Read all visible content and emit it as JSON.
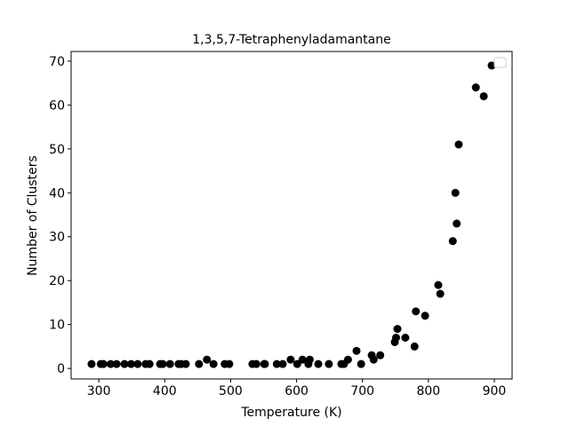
{
  "chart_data": {
    "type": "scatter",
    "title": "1,3,5,7-Tetraphenyladamantane",
    "xlabel": "Temperature (K)",
    "ylabel": "Number of Clusters",
    "color": "#000000",
    "legend": "upper right",
    "x": [
      289,
      303,
      307,
      318,
      327,
      339,
      349,
      359,
      371,
      377,
      393,
      397,
      408,
      421,
      425,
      432,
      452,
      474,
      491,
      498,
      533,
      539,
      551,
      552,
      570,
      579,
      601,
      618,
      633,
      649,
      668,
      672,
      698,
      464,
      591,
      609,
      620,
      678,
      691,
      714,
      717,
      727,
      749,
      751,
      753,
      765,
      779,
      781,
      795,
      815,
      818,
      837,
      843,
      841,
      846,
      872,
      884,
      896
    ],
    "values": [
      1,
      1,
      1,
      1,
      1,
      1,
      1,
      1,
      1,
      1,
      1,
      1,
      1,
      1,
      1,
      1,
      1,
      1,
      1,
      1,
      1,
      1,
      1,
      1,
      1,
      1,
      1,
      1,
      1,
      1,
      1,
      1,
      1,
      2,
      2,
      2,
      2,
      2,
      4,
      3,
      2,
      3,
      6,
      7,
      9,
      7,
      5,
      13,
      12,
      19,
      17,
      29,
      33,
      40,
      51,
      64,
      62,
      69
    ],
    "xlim": [
      258,
      927
    ],
    "ylim": [
      -2.4,
      72.2
    ],
    "xticks": [
      300,
      400,
      500,
      600,
      700,
      800,
      900
    ],
    "yticks": [
      0,
      10,
      20,
      30,
      40,
      50,
      60,
      70
    ]
  }
}
